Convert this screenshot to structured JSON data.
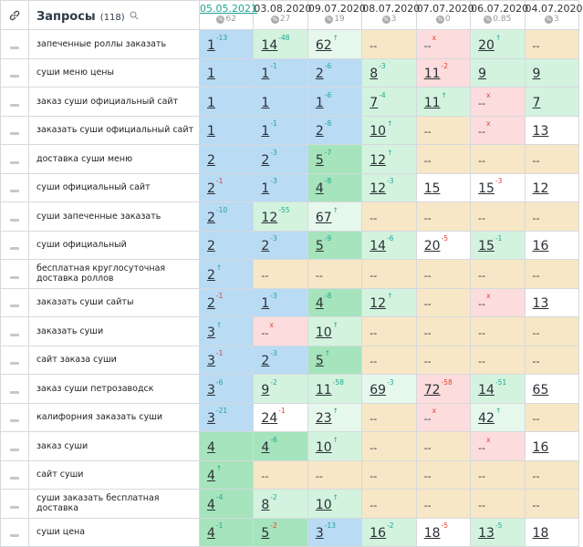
{
  "header": {
    "title": "Запросы",
    "count": "(118)",
    "dates": [
      {
        "date": "05.05.2021",
        "value": "62",
        "color": "#1fa58f"
      },
      {
        "date": "03.08.2020",
        "value": "27",
        "color": "#333333"
      },
      {
        "date": "09.07.2020",
        "value": "19",
        "color": "#333333"
      },
      {
        "date": "08.07.2020",
        "value": "3",
        "color": "#333333"
      },
      {
        "date": "07.07.2020",
        "value": "0",
        "color": "#333333"
      },
      {
        "date": "06.07.2020",
        "value": "0.85",
        "color": "#333333"
      },
      {
        "date": "04.07.2020",
        "value": "3",
        "color": "#333333"
      }
    ]
  },
  "rows": [
    {
      "query": "запеченные роллы заказать",
      "cells": [
        {
          "rank": "1",
          "change": "-13",
          "change_color": "#1fa58f",
          "bg": "#b9dbf4"
        },
        {
          "rank": "14",
          "change": "-48",
          "change_color": "#1fa58f",
          "bg": "#d3f3df"
        },
        {
          "rank": "62",
          "change": "↑",
          "change_color": "#1fa58f",
          "bg": "#e6f7ec"
        },
        {
          "rank": "--",
          "bg": "#f7e7c6"
        },
        {
          "rank": "--",
          "change": "x",
          "change_color": "#e2412f",
          "bg": "#fcdcdc"
        },
        {
          "rank": "20",
          "change": "↑",
          "change_color": "#1fa58f",
          "bg": "#d3f3df"
        },
        {
          "rank": "--",
          "bg": "#f7e7c6"
        }
      ]
    },
    {
      "query": "суши меню цены",
      "cells": [
        {
          "rank": "1",
          "bg": "#b9dbf4"
        },
        {
          "rank": "1",
          "change": "-1",
          "change_color": "#1fa58f",
          "bg": "#b9dbf4"
        },
        {
          "rank": "2",
          "change": "-6",
          "change_color": "#1fa58f",
          "bg": "#b9dbf4"
        },
        {
          "rank": "8",
          "change": "-3",
          "change_color": "#1fa58f",
          "bg": "#d3f3df"
        },
        {
          "rank": "11",
          "change": "-2",
          "change_color": "#e2412f",
          "bg": "#fcdcdc"
        },
        {
          "rank": "9",
          "bg": "#d3f3df"
        },
        {
          "rank": "9",
          "bg": "#d3f3df"
        }
      ]
    },
    {
      "query": "заказ суши официальный сайт",
      "cells": [
        {
          "rank": "1",
          "bg": "#b9dbf4"
        },
        {
          "rank": "1",
          "bg": "#b9dbf4"
        },
        {
          "rank": "1",
          "change": "-6",
          "change_color": "#1fa58f",
          "bg": "#b9dbf4"
        },
        {
          "rank": "7",
          "change": "-4",
          "change_color": "#1fa58f",
          "bg": "#d3f3df"
        },
        {
          "rank": "11",
          "change": "↑",
          "change_color": "#1fa58f",
          "bg": "#d3f3df"
        },
        {
          "rank": "--",
          "change": "x",
          "change_color": "#e2412f",
          "bg": "#fcdcdc"
        },
        {
          "rank": "7",
          "bg": "#d3f3df"
        }
      ]
    },
    {
      "query": "заказать суши официальный сайт",
      "cells": [
        {
          "rank": "1",
          "bg": "#b9dbf4"
        },
        {
          "rank": "1",
          "change": "-1",
          "change_color": "#1fa58f",
          "bg": "#b9dbf4"
        },
        {
          "rank": "2",
          "change": "-8",
          "change_color": "#1fa58f",
          "bg": "#b9dbf4"
        },
        {
          "rank": "10",
          "change": "↑",
          "change_color": "#1fa58f",
          "bg": "#d3f3df"
        },
        {
          "rank": "--",
          "bg": "#f7e7c6"
        },
        {
          "rank": "--",
          "change": "x",
          "change_color": "#e2412f",
          "bg": "#fcdcdc"
        },
        {
          "rank": "13",
          "bg": "#ffffff"
        }
      ]
    },
    {
      "query": "доставка суши меню",
      "cells": [
        {
          "rank": "2",
          "bg": "#b9dbf4"
        },
        {
          "rank": "2",
          "change": "-3",
          "change_color": "#1fa58f",
          "bg": "#b9dbf4"
        },
        {
          "rank": "5",
          "change": "-7",
          "change_color": "#1fa58f",
          "bg": "#a5e4bc"
        },
        {
          "rank": "12",
          "change": "↑",
          "change_color": "#1fa58f",
          "bg": "#d3f3df"
        },
        {
          "rank": "--",
          "bg": "#f7e7c6"
        },
        {
          "rank": "--",
          "bg": "#f7e7c6"
        },
        {
          "rank": "--",
          "bg": "#f7e7c6"
        }
      ]
    },
    {
      "query": "суши официальный сайт",
      "cells": [
        {
          "rank": "2",
          "change": "-1",
          "change_color": "#e2412f",
          "bg": "#b9dbf4"
        },
        {
          "rank": "1",
          "change": "-3",
          "change_color": "#1fa58f",
          "bg": "#b9dbf4"
        },
        {
          "rank": "4",
          "change": "-8",
          "change_color": "#1fa58f",
          "bg": "#a5e4bc"
        },
        {
          "rank": "12",
          "change": "-3",
          "change_color": "#1fa58f",
          "bg": "#d3f3df"
        },
        {
          "rank": "15",
          "bg": "#ffffff"
        },
        {
          "rank": "15",
          "change": "-3",
          "change_color": "#e2412f",
          "bg": "#ffffff"
        },
        {
          "rank": "12",
          "bg": "#ffffff"
        }
      ]
    },
    {
      "query": "суши запеченные заказать",
      "cells": [
        {
          "rank": "2",
          "change": "-10",
          "change_color": "#1fa58f",
          "bg": "#b9dbf4"
        },
        {
          "rank": "12",
          "change": "-55",
          "change_color": "#1fa58f",
          "bg": "#d3f3df"
        },
        {
          "rank": "67",
          "change": "↑",
          "change_color": "#1fa58f",
          "bg": "#e6f7ec"
        },
        {
          "rank": "--",
          "bg": "#f7e7c6"
        },
        {
          "rank": "--",
          "bg": "#f7e7c6"
        },
        {
          "rank": "--",
          "bg": "#f7e7c6"
        },
        {
          "rank": "--",
          "bg": "#f7e7c6"
        }
      ]
    },
    {
      "query": "суши официальный",
      "cells": [
        {
          "rank": "2",
          "bg": "#b9dbf4"
        },
        {
          "rank": "2",
          "change": "-3",
          "change_color": "#1fa58f",
          "bg": "#b9dbf4"
        },
        {
          "rank": "5",
          "change": "-9",
          "change_color": "#1fa58f",
          "bg": "#a5e4bc"
        },
        {
          "rank": "14",
          "change": "-6",
          "change_color": "#1fa58f",
          "bg": "#d3f3df"
        },
        {
          "rank": "20",
          "change": "-5",
          "change_color": "#e2412f",
          "bg": "#ffffff"
        },
        {
          "rank": "15",
          "change": "-1",
          "change_color": "#1fa58f",
          "bg": "#d3f3df"
        },
        {
          "rank": "16",
          "bg": "#ffffff"
        }
      ]
    },
    {
      "query": "бесплатная круглосуточная доставка роллов",
      "cells": [
        {
          "rank": "2",
          "change": "↑",
          "change_color": "#1fa58f",
          "bg": "#b9dbf4"
        },
        {
          "rank": "--",
          "bg": "#f7e7c6"
        },
        {
          "rank": "--",
          "bg": "#f7e7c6"
        },
        {
          "rank": "--",
          "bg": "#f7e7c6"
        },
        {
          "rank": "--",
          "bg": "#f7e7c6"
        },
        {
          "rank": "--",
          "bg": "#f7e7c6"
        },
        {
          "rank": "--",
          "bg": "#f7e7c6"
        }
      ]
    },
    {
      "query": "заказать суши сайты",
      "cells": [
        {
          "rank": "2",
          "change": "-1",
          "change_color": "#e2412f",
          "bg": "#b9dbf4"
        },
        {
          "rank": "1",
          "change": "-3",
          "change_color": "#1fa58f",
          "bg": "#b9dbf4"
        },
        {
          "rank": "4",
          "change": "-8",
          "change_color": "#1fa58f",
          "bg": "#a5e4bc"
        },
        {
          "rank": "12",
          "change": "↑",
          "change_color": "#1fa58f",
          "bg": "#d3f3df"
        },
        {
          "rank": "--",
          "bg": "#f7e7c6"
        },
        {
          "rank": "--",
          "change": "x",
          "change_color": "#e2412f",
          "bg": "#fcdcdc"
        },
        {
          "rank": "13",
          "bg": "#ffffff"
        }
      ]
    },
    {
      "query": "заказать суши",
      "cells": [
        {
          "rank": "3",
          "change": "↑",
          "change_color": "#1fa58f",
          "bg": "#b9dbf4"
        },
        {
          "rank": "--",
          "change": "x",
          "change_color": "#e2412f",
          "bg": "#fcdcdc"
        },
        {
          "rank": "10",
          "change": "↑",
          "change_color": "#1fa58f",
          "bg": "#d3f3df"
        },
        {
          "rank": "--",
          "bg": "#f7e7c6"
        },
        {
          "rank": "--",
          "bg": "#f7e7c6"
        },
        {
          "rank": "--",
          "bg": "#f7e7c6"
        },
        {
          "rank": "--",
          "bg": "#f7e7c6"
        }
      ]
    },
    {
      "query": "сайт заказа суши",
      "cells": [
        {
          "rank": "3",
          "change": "-1",
          "change_color": "#e2412f",
          "bg": "#b9dbf4"
        },
        {
          "rank": "2",
          "change": "-3",
          "change_color": "#1fa58f",
          "bg": "#b9dbf4"
        },
        {
          "rank": "5",
          "change": "↑",
          "change_color": "#1fa58f",
          "bg": "#a5e4bc"
        },
        {
          "rank": "--",
          "bg": "#f7e7c6"
        },
        {
          "rank": "--",
          "bg": "#f7e7c6"
        },
        {
          "rank": "--",
          "bg": "#f7e7c6"
        },
        {
          "rank": "--",
          "bg": "#f7e7c6"
        }
      ]
    },
    {
      "query": "заказ суши петрозаводск",
      "cells": [
        {
          "rank": "3",
          "change": "-6",
          "change_color": "#1fa58f",
          "bg": "#b9dbf4"
        },
        {
          "rank": "9",
          "change": "-2",
          "change_color": "#1fa58f",
          "bg": "#d3f3df"
        },
        {
          "rank": "11",
          "change": "-58",
          "change_color": "#1fa58f",
          "bg": "#d3f3df"
        },
        {
          "rank": "69",
          "change": "-3",
          "change_color": "#1fa58f",
          "bg": "#e6f7ec"
        },
        {
          "rank": "72",
          "change": "-58",
          "change_color": "#e2412f",
          "bg": "#fcdcdc"
        },
        {
          "rank": "14",
          "change": "-51",
          "change_color": "#1fa58f",
          "bg": "#d3f3df"
        },
        {
          "rank": "65",
          "bg": "#ffffff"
        }
      ]
    },
    {
      "query": "калифорния заказать суши",
      "cells": [
        {
          "rank": "3",
          "change": "-21",
          "change_color": "#1fa58f",
          "bg": "#b9dbf4"
        },
        {
          "rank": "24",
          "change": "-1",
          "change_color": "#e2412f",
          "bg": "#ffffff"
        },
        {
          "rank": "23",
          "change": "↑",
          "change_color": "#1fa58f",
          "bg": "#e6f7ec"
        },
        {
          "rank": "--",
          "bg": "#f7e7c6"
        },
        {
          "rank": "--",
          "change": "x",
          "change_color": "#e2412f",
          "bg": "#fcdcdc"
        },
        {
          "rank": "42",
          "change": "↑",
          "change_color": "#1fa58f",
          "bg": "#e6f7ec"
        },
        {
          "rank": "--",
          "bg": "#f7e7c6"
        }
      ]
    },
    {
      "query": "заказ суши",
      "cells": [
        {
          "rank": "4",
          "bg": "#a5e4bc"
        },
        {
          "rank": "4",
          "change": "-6",
          "change_color": "#1fa58f",
          "bg": "#a5e4bc"
        },
        {
          "rank": "10",
          "change": "↑",
          "change_color": "#1fa58f",
          "bg": "#d3f3df"
        },
        {
          "rank": "--",
          "bg": "#f7e7c6"
        },
        {
          "rank": "--",
          "bg": "#f7e7c6"
        },
        {
          "rank": "--",
          "change": "x",
          "change_color": "#e2412f",
          "bg": "#fcdcdc"
        },
        {
          "rank": "16",
          "bg": "#ffffff"
        }
      ]
    },
    {
      "query": "сайт суши",
      "cells": [
        {
          "rank": "4",
          "change": "↑",
          "change_color": "#1fa58f",
          "bg": "#a5e4bc"
        },
        {
          "rank": "--",
          "bg": "#f7e7c6"
        },
        {
          "rank": "--",
          "bg": "#f7e7c6"
        },
        {
          "rank": "--",
          "bg": "#f7e7c6"
        },
        {
          "rank": "--",
          "bg": "#f7e7c6"
        },
        {
          "rank": "--",
          "bg": "#f7e7c6"
        },
        {
          "rank": "--",
          "bg": "#f7e7c6"
        }
      ]
    },
    {
      "query": "суши заказать бесплатная доставка",
      "cells": [
        {
          "rank": "4",
          "change": "-4",
          "change_color": "#1fa58f",
          "bg": "#a5e4bc"
        },
        {
          "rank": "8",
          "change": "-2",
          "change_color": "#1fa58f",
          "bg": "#d3f3df"
        },
        {
          "rank": "10",
          "change": "↑",
          "change_color": "#1fa58f",
          "bg": "#d3f3df"
        },
        {
          "rank": "--",
          "bg": "#f7e7c6"
        },
        {
          "rank": "--",
          "bg": "#f7e7c6"
        },
        {
          "rank": "--",
          "bg": "#f7e7c6"
        },
        {
          "rank": "--",
          "bg": "#f7e7c6"
        }
      ]
    },
    {
      "query": "суши цена",
      "cells": [
        {
          "rank": "4",
          "change": "-1",
          "change_color": "#1fa58f",
          "bg": "#a5e4bc"
        },
        {
          "rank": "5",
          "change": "-2",
          "change_color": "#e2412f",
          "bg": "#a5e4bc"
        },
        {
          "rank": "3",
          "change": "-13",
          "change_color": "#1fa58f",
          "bg": "#b9dbf4"
        },
        {
          "rank": "16",
          "change": "-2",
          "change_color": "#1fa58f",
          "bg": "#d3f3df"
        },
        {
          "rank": "18",
          "change": "-5",
          "change_color": "#e2412f",
          "bg": "#ffffff"
        },
        {
          "rank": "13",
          "change": "-5",
          "change_color": "#1fa58f",
          "bg": "#d3f3df"
        },
        {
          "rank": "18",
          "bg": "#ffffff"
        }
      ]
    }
  ]
}
